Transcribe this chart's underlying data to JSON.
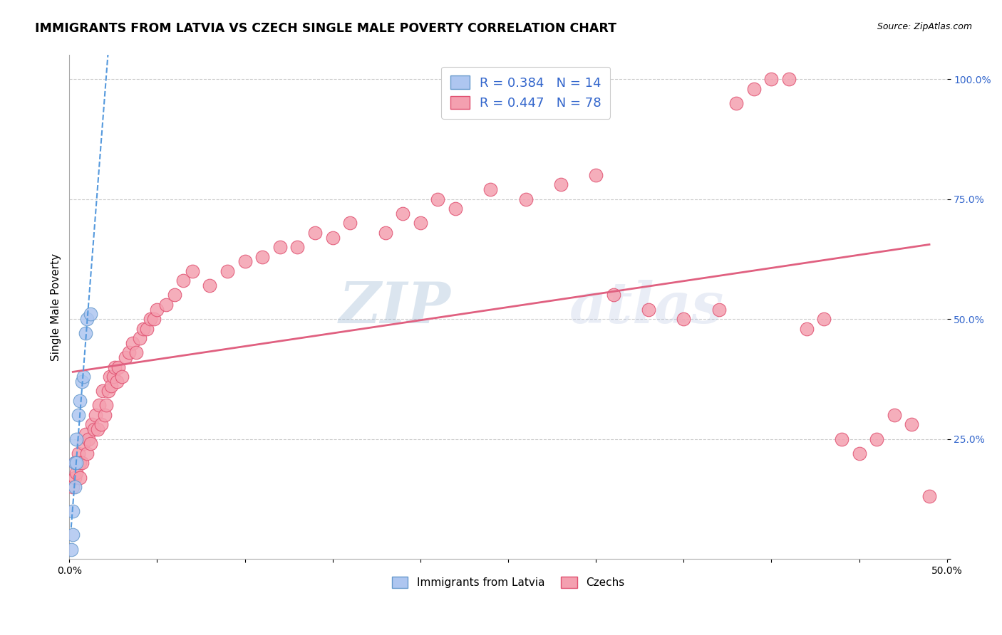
{
  "title": "IMMIGRANTS FROM LATVIA VS CZECH SINGLE MALE POVERTY CORRELATION CHART",
  "source": "Source: ZipAtlas.com",
  "ylabel": "Single Male Poverty",
  "xlim": [
    0.0,
    0.5
  ],
  "ylim": [
    0.0,
    1.05
  ],
  "xticks": [
    0.0,
    0.05,
    0.1,
    0.15,
    0.2,
    0.25,
    0.3,
    0.35,
    0.4,
    0.45,
    0.5
  ],
  "xticklabels": [
    "0.0%",
    "",
    "",
    "",
    "",
    "",
    "",
    "",
    "",
    "",
    "50.0%"
  ],
  "ytick_positions": [
    0.0,
    0.25,
    0.5,
    0.75,
    1.0
  ],
  "ytick_labels": [
    "",
    "25.0%",
    "50.0%",
    "75.0%",
    "100.0%"
  ],
  "latvia_color": "#aec6f0",
  "czech_color": "#f4a0b0",
  "latvia_edge": "#6699cc",
  "czech_edge": "#e05070",
  "trendline_latvia_color": "#5599dd",
  "trendline_czech_color": "#e06080",
  "latvia_x": [
    0.001,
    0.002,
    0.002,
    0.003,
    0.003,
    0.004,
    0.004,
    0.005,
    0.006,
    0.007,
    0.008,
    0.009,
    0.01,
    0.012
  ],
  "latvia_y": [
    0.02,
    0.05,
    0.1,
    0.15,
    0.2,
    0.2,
    0.25,
    0.3,
    0.33,
    0.37,
    0.38,
    0.47,
    0.5,
    0.51
  ],
  "czech_x": [
    0.002,
    0.003,
    0.003,
    0.004,
    0.005,
    0.006,
    0.006,
    0.007,
    0.008,
    0.009,
    0.01,
    0.011,
    0.012,
    0.013,
    0.014,
    0.015,
    0.016,
    0.017,
    0.018,
    0.019,
    0.02,
    0.021,
    0.022,
    0.023,
    0.024,
    0.025,
    0.026,
    0.027,
    0.028,
    0.03,
    0.032,
    0.034,
    0.036,
    0.038,
    0.04,
    0.042,
    0.044,
    0.046,
    0.048,
    0.05,
    0.055,
    0.06,
    0.065,
    0.07,
    0.08,
    0.09,
    0.1,
    0.11,
    0.12,
    0.13,
    0.14,
    0.15,
    0.16,
    0.18,
    0.19,
    0.2,
    0.21,
    0.22,
    0.24,
    0.26,
    0.28,
    0.3,
    0.31,
    0.33,
    0.35,
    0.37,
    0.38,
    0.39,
    0.4,
    0.41,
    0.42,
    0.43,
    0.44,
    0.45,
    0.46,
    0.47,
    0.48,
    0.49
  ],
  "czech_y": [
    0.15,
    0.17,
    0.2,
    0.18,
    0.22,
    0.17,
    0.2,
    0.2,
    0.24,
    0.26,
    0.22,
    0.25,
    0.24,
    0.28,
    0.27,
    0.3,
    0.27,
    0.32,
    0.28,
    0.35,
    0.3,
    0.32,
    0.35,
    0.38,
    0.36,
    0.38,
    0.4,
    0.37,
    0.4,
    0.38,
    0.42,
    0.43,
    0.45,
    0.43,
    0.46,
    0.48,
    0.48,
    0.5,
    0.5,
    0.52,
    0.53,
    0.55,
    0.58,
    0.6,
    0.57,
    0.6,
    0.62,
    0.63,
    0.65,
    0.65,
    0.68,
    0.67,
    0.7,
    0.68,
    0.72,
    0.7,
    0.75,
    0.73,
    0.77,
    0.75,
    0.78,
    0.8,
    0.55,
    0.52,
    0.5,
    0.52,
    0.95,
    0.98,
    1.0,
    1.0,
    0.48,
    0.5,
    0.25,
    0.22,
    0.25,
    0.3,
    0.28,
    0.13
  ],
  "watermark_zip": "ZIP",
  "watermark_atlas": "atlas",
  "background_color": "#ffffff",
  "grid_color": "#cccccc"
}
